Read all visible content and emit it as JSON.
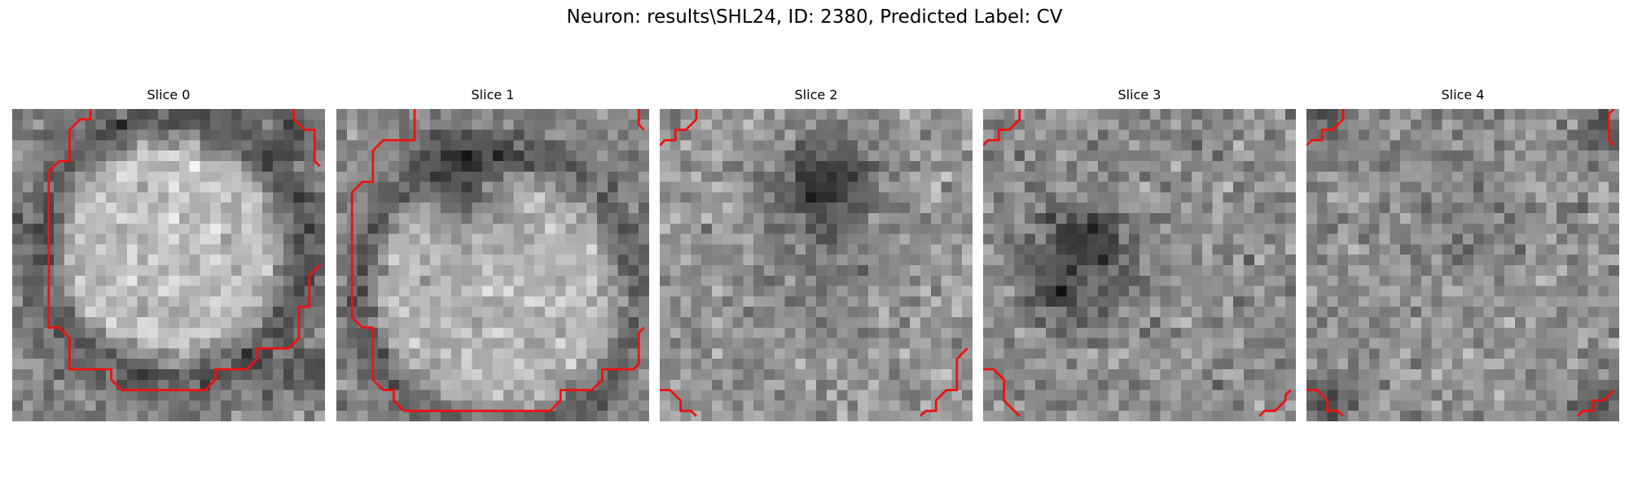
{
  "figure": {
    "title": "Neuron: results\\SHL24, ID: 2380, Predicted Label: CV"
  },
  "grid_cells": 30,
  "panels": [
    {
      "title": "Slice 0",
      "image": {
        "seed": 11,
        "base": 128,
        "noise": 38,
        "features": [
          {
            "type": "disk",
            "cx": 15.2,
            "cy": 13.5,
            "r": 10.5,
            "soft": 2.5,
            "delta": 62
          },
          {
            "type": "ring",
            "cx": 15.2,
            "cy": 13.5,
            "r": 12.7,
            "w": 2.0,
            "delta": -42
          },
          {
            "type": "blob",
            "cx": 28,
            "cy": 25,
            "r": 2.0,
            "delta": -60
          },
          {
            "type": "blob",
            "cx": 27,
            "cy": 2,
            "r": 2.0,
            "delta": -55
          }
        ]
      },
      "contours": [
        [
          [
            7.5,
            0
          ],
          [
            7.5,
            1
          ],
          [
            6.5,
            1
          ],
          [
            5.5,
            2
          ],
          [
            5.5,
            5
          ],
          [
            4.5,
            5
          ],
          [
            3.5,
            6
          ],
          [
            3.5,
            21
          ],
          [
            4.5,
            21
          ],
          [
            5.5,
            22
          ],
          [
            5.5,
            25
          ],
          [
            9.5,
            25
          ],
          [
            9.5,
            26
          ],
          [
            10.5,
            27
          ],
          [
            18.5,
            27
          ],
          [
            19.5,
            26
          ],
          [
            19.5,
            25
          ],
          [
            22.5,
            25
          ],
          [
            23.5,
            24
          ],
          [
            23.5,
            23
          ],
          [
            26.5,
            23
          ],
          [
            27.5,
            22
          ],
          [
            27.5,
            19
          ],
          [
            28.5,
            19
          ],
          [
            28.5,
            16
          ],
          [
            29.5,
            15
          ]
        ],
        [
          [
            27,
            0
          ],
          [
            27,
            1
          ],
          [
            28,
            2
          ],
          [
            29,
            2
          ],
          [
            29,
            5
          ],
          [
            29.5,
            5.5
          ]
        ]
      ]
    },
    {
      "title": "Slice 1",
      "image": {
        "seed": 23,
        "base": 135,
        "noise": 36,
        "features": [
          {
            "type": "disk",
            "cx": 15.5,
            "cy": 17.5,
            "r": 11.5,
            "soft": 2.5,
            "delta": 45
          },
          {
            "type": "blob",
            "cx": 12.5,
            "cy": 7.5,
            "r": 4.5,
            "delta": -85
          },
          {
            "type": "ring",
            "cx": 15.5,
            "cy": 17.5,
            "r": 13.5,
            "w": 1.8,
            "delta": -35
          }
        ]
      },
      "contours": [
        [
          [
            7.5,
            0
          ],
          [
            7.5,
            3
          ],
          [
            4.5,
            3
          ],
          [
            3.5,
            4
          ],
          [
            3.5,
            7
          ],
          [
            2.5,
            7
          ],
          [
            1.5,
            8
          ],
          [
            1.5,
            20
          ],
          [
            2.5,
            21
          ],
          [
            3.5,
            21
          ],
          [
            3.5,
            26
          ],
          [
            4.5,
            27
          ],
          [
            5.5,
            27
          ],
          [
            5.5,
            28
          ],
          [
            6.5,
            29
          ],
          [
            20.5,
            29
          ],
          [
            21.5,
            28
          ],
          [
            21.5,
            27
          ],
          [
            24.5,
            27
          ],
          [
            25.5,
            26
          ],
          [
            25.5,
            25
          ],
          [
            28.5,
            25
          ],
          [
            29,
            24.5
          ],
          [
            29,
            21.5
          ],
          [
            29.5,
            21
          ]
        ],
        [
          [
            29,
            0
          ],
          [
            29,
            1.5
          ],
          [
            29.5,
            2
          ]
        ]
      ]
    },
    {
      "title": "Slice 2",
      "image": {
        "seed": 37,
        "base": 150,
        "noise": 40,
        "features": [
          {
            "type": "blob",
            "cx": 16,
            "cy": 7.5,
            "r": 5.0,
            "delta": -100
          },
          {
            "type": "blob",
            "cx": 14,
            "cy": 18,
            "r": 6.0,
            "delta": -20
          }
        ]
      },
      "contours": [
        [
          [
            3.5,
            0
          ],
          [
            3.5,
            1
          ],
          [
            2.5,
            2
          ],
          [
            1.5,
            2
          ],
          [
            1.5,
            3
          ],
          [
            0.5,
            3
          ],
          [
            0,
            3.5
          ]
        ],
        [
          [
            0,
            27
          ],
          [
            1,
            27
          ],
          [
            2,
            28
          ],
          [
            2,
            29
          ],
          [
            3,
            29
          ],
          [
            3.5,
            29.5
          ]
        ],
        [
          [
            29.5,
            23
          ],
          [
            28.5,
            24
          ],
          [
            28.5,
            27
          ],
          [
            27.5,
            27
          ],
          [
            26.5,
            28
          ],
          [
            26.5,
            29
          ],
          [
            25.5,
            29
          ],
          [
            25,
            29.5
          ]
        ]
      ]
    },
    {
      "title": "Slice 3",
      "image": {
        "seed": 51,
        "base": 140,
        "noise": 42,
        "features": [
          {
            "type": "blob",
            "cx": 9,
            "cy": 14,
            "r": 5.5,
            "delta": -55
          },
          {
            "type": "blob",
            "cx": 7,
            "cy": 18.5,
            "r": 3.0,
            "delta": -45
          },
          {
            "type": "blob",
            "cx": 10,
            "cy": 12,
            "r": 3.0,
            "delta": -35
          }
        ]
      },
      "contours": [
        [
          [
            3.5,
            0
          ],
          [
            3.5,
            1
          ],
          [
            2.5,
            2
          ],
          [
            1.5,
            2
          ],
          [
            1.5,
            3
          ],
          [
            0.5,
            3
          ],
          [
            0,
            3.5
          ]
        ],
        [
          [
            0,
            25
          ],
          [
            1,
            25
          ],
          [
            2,
            26
          ],
          [
            2,
            28
          ],
          [
            3,
            29
          ],
          [
            3.5,
            29.5
          ]
        ],
        [
          [
            29.5,
            27
          ],
          [
            29,
            27.5
          ],
          [
            29,
            28
          ],
          [
            28,
            29
          ],
          [
            27,
            29
          ],
          [
            26.5,
            29.5
          ]
        ]
      ]
    },
    {
      "title": "Slice 4",
      "image": {
        "seed": 67,
        "base": 145,
        "noise": 40,
        "features": [
          {
            "type": "blob",
            "cx": 15,
            "cy": 8,
            "r": 6.0,
            "delta": -15
          },
          {
            "type": "blob",
            "cx": 1,
            "cy": 1,
            "r": 3.0,
            "delta": -55
          },
          {
            "type": "blob",
            "cx": 28.5,
            "cy": 1.5,
            "r": 3.0,
            "delta": -60
          },
          {
            "type": "blob",
            "cx": 1.5,
            "cy": 28.5,
            "r": 3.0,
            "delta": -55
          },
          {
            "type": "blob",
            "cx": 28.5,
            "cy": 28.5,
            "r": 3.0,
            "delta": -60
          }
        ]
      },
      "contours": [
        [
          [
            3.5,
            0
          ],
          [
            3.5,
            1
          ],
          [
            2.5,
            2
          ],
          [
            1.5,
            2
          ],
          [
            1.5,
            3
          ],
          [
            0.5,
            3
          ],
          [
            0,
            3.5
          ]
        ],
        [
          [
            29.5,
            0
          ],
          [
            29,
            0.5
          ],
          [
            29,
            3
          ],
          [
            29.5,
            3.5
          ]
        ],
        [
          [
            0,
            27
          ],
          [
            1,
            27
          ],
          [
            2,
            28
          ],
          [
            2,
            29
          ],
          [
            3,
            29
          ],
          [
            3.5,
            29.5
          ]
        ],
        [
          [
            29.5,
            27
          ],
          [
            28.5,
            28
          ],
          [
            27.5,
            28
          ],
          [
            27.5,
            29
          ],
          [
            26.5,
            29
          ],
          [
            26,
            29.5
          ]
        ]
      ]
    }
  ],
  "colors": {
    "contour": "#ee1111"
  }
}
